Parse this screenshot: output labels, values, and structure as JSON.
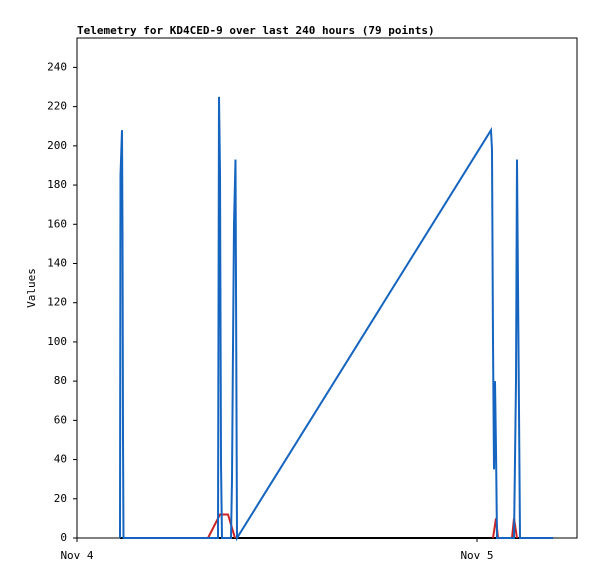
{
  "chart_data": {
    "type": "line",
    "title": "Telemetry for KD4CED-9 over last 240 hours (79 points)",
    "y_label": "Values",
    "xlim": [
      0,
      30
    ],
    "ylim": [
      0,
      255
    ],
    "xticks": [
      {
        "value": 0,
        "label": "Nov 4"
      },
      {
        "value": 24,
        "label": "Nov 5"
      }
    ],
    "yticks": [
      0,
      20,
      40,
      60,
      80,
      100,
      120,
      140,
      160,
      180,
      200,
      220,
      240
    ],
    "series": [
      {
        "color": "#000000",
        "x": [
          2.58,
          28.56
        ],
        "values": [
          0,
          0
        ]
      },
      {
        "color": "#cc2222",
        "x": [
          7.86,
          8.58,
          9.06,
          9.48,
          null,
          24.96,
          25.14,
          25.26,
          null,
          26.1,
          26.22,
          26.4
        ],
        "values": [
          0,
          12,
          12,
          0,
          null,
          0,
          10,
          0,
          null,
          0,
          10,
          0
        ]
      },
      {
        "color": "#1565c0",
        "x": [
          2.58,
          2.61,
          2.7,
          2.73,
          2.76,
          2.79,
          8.46,
          8.49,
          8.52,
          8.58,
          8.64,
          8.7,
          9.24,
          9.3,
          9.36,
          9.42,
          9.51,
          9.6,
          24.84,
          24.9,
          24.96,
          25.02,
          25.08,
          25.14,
          25.2,
          26.22,
          26.28,
          26.34,
          26.4,
          26.49,
          26.58,
          28.56
        ],
        "values": [
          0,
          185,
          208,
          155,
          52,
          0,
          0,
          112,
          225,
          187,
          38,
          0,
          0,
          30,
          97,
          160,
          193,
          0,
          208,
          198,
          100,
          35,
          80,
          45,
          0,
          0,
          40,
          80,
          193,
          97,
          0,
          0
        ]
      }
    ]
  }
}
